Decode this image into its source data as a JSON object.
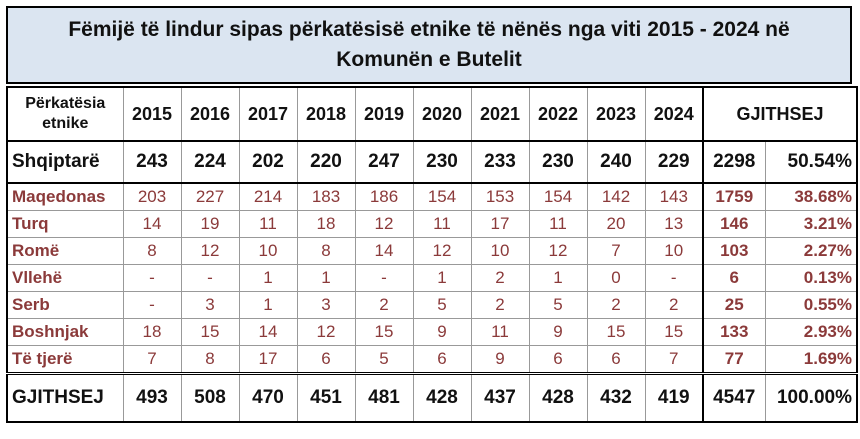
{
  "header": {
    "title_lines": [
      "Fëmijë të lindur sipas përkatësisë etnike të nënës nga viti 2015 - 2024 në",
      "Komunën e Butelit"
    ]
  },
  "table": {
    "columns": {
      "label": "Përkatësia etnike",
      "years": [
        "2015",
        "2016",
        "2017",
        "2018",
        "2019",
        "2020",
        "2021",
        "2022",
        "2023",
        "2024"
      ],
      "total": "GJITHSEJ"
    },
    "main_row": {
      "label": "Shqiptarë",
      "values": [
        "243",
        "224",
        "202",
        "220",
        "247",
        "230",
        "233",
        "230",
        "240",
        "229"
      ],
      "total": "2298",
      "percent": "50.54%"
    },
    "rows": [
      {
        "label": "Maqedonas",
        "values": [
          "203",
          "227",
          "214",
          "183",
          "186",
          "154",
          "153",
          "154",
          "142",
          "143"
        ],
        "total": "1759",
        "percent": "38.68%"
      },
      {
        "label": "Turq",
        "values": [
          "14",
          "19",
          "11",
          "18",
          "12",
          "11",
          "17",
          "11",
          "20",
          "13"
        ],
        "total": "146",
        "percent": "3.21%"
      },
      {
        "label": "Romë",
        "values": [
          "8",
          "12",
          "10",
          "8",
          "14",
          "12",
          "10",
          "12",
          "7",
          "10"
        ],
        "total": "103",
        "percent": "2.27%"
      },
      {
        "label": "Vllehë",
        "values": [
          "-",
          "-",
          "1",
          "1",
          "-",
          "1",
          "2",
          "1",
          "0",
          "-"
        ],
        "total": "6",
        "percent": "0.13%"
      },
      {
        "label": "Serb",
        "values": [
          "-",
          "3",
          "1",
          "3",
          "2",
          "5",
          "2",
          "5",
          "2",
          "2"
        ],
        "total": "25",
        "percent": "0.55%"
      },
      {
        "label": "Boshnjak",
        "values": [
          "18",
          "15",
          "14",
          "12",
          "15",
          "9",
          "11",
          "9",
          "15",
          "15"
        ],
        "total": "133",
        "percent": "2.93%"
      },
      {
        "label": "Të tjerë",
        "values": [
          "7",
          "8",
          "17",
          "6",
          "5",
          "6",
          "9",
          "6",
          "6",
          "7"
        ],
        "total": "77",
        "percent": "1.69%"
      }
    ],
    "total_row": {
      "label": "GJITHSEJ",
      "values": [
        "493",
        "508",
        "470",
        "451",
        "481",
        "428",
        "437",
        "428",
        "432",
        "419"
      ],
      "total": "4547",
      "percent": "100.00%"
    }
  }
}
